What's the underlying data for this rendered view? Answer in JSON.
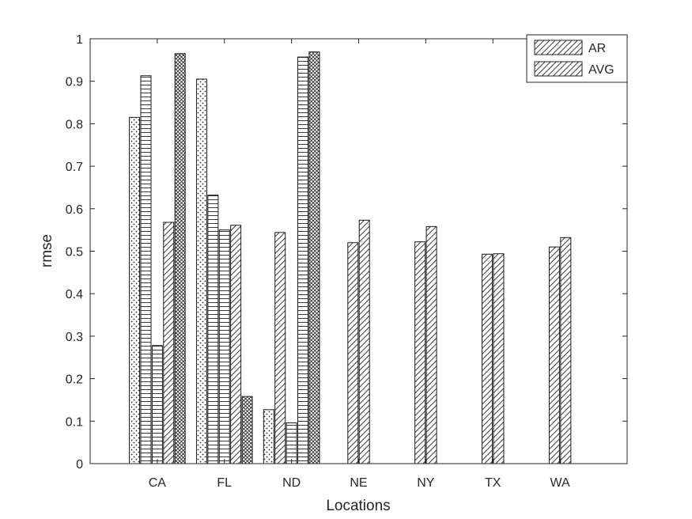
{
  "chart_data": {
    "type": "bar",
    "xlabel": "Locations",
    "ylabel": "rmse",
    "ylim": [
      0,
      1
    ],
    "yticks": [
      "0",
      "0.1",
      "0.2",
      "0.3",
      "0.4",
      "0.5",
      "0.6",
      "0.7",
      "0.8",
      "0.9",
      "1"
    ],
    "categories": [
      "CA",
      "FL",
      "ND",
      "NE",
      "NY",
      "TX",
      "WA"
    ],
    "legend_placement": "top-right",
    "legend": [
      "AR",
      "AVG"
    ],
    "bar_groups": [
      {
        "category": "CA",
        "bars": [
          {
            "value": 0.815,
            "pattern": "dots"
          },
          {
            "value": 0.913,
            "pattern": "hlines"
          },
          {
            "value": 0.278,
            "pattern": "hlines"
          },
          {
            "value": 0.568,
            "pattern": "diag"
          },
          {
            "value": 0.965,
            "pattern": "cross"
          }
        ]
      },
      {
        "category": "FL",
        "bars": [
          {
            "value": 0.905,
            "pattern": "dots"
          },
          {
            "value": 0.632,
            "pattern": "hlines"
          },
          {
            "value": 0.55,
            "pattern": "hlines"
          },
          {
            "value": 0.561,
            "pattern": "diag"
          },
          {
            "value": 0.158,
            "pattern": "cross"
          }
        ]
      },
      {
        "category": "ND",
        "bars": [
          {
            "value": 0.127,
            "pattern": "dots"
          },
          {
            "value": 0.544,
            "pattern": "diag"
          },
          {
            "value": 0.096,
            "pattern": "hlines"
          },
          {
            "value": 0.957,
            "pattern": "hlines"
          },
          {
            "value": 0.969,
            "pattern": "cross"
          }
        ]
      },
      {
        "category": "NE",
        "bars": [
          {
            "value": 0.52,
            "pattern": "diag"
          },
          {
            "value": 0.573,
            "pattern": "diag"
          }
        ]
      },
      {
        "category": "NY",
        "bars": [
          {
            "value": 0.522,
            "pattern": "diag"
          },
          {
            "value": 0.558,
            "pattern": "diag"
          }
        ]
      },
      {
        "category": "TX",
        "bars": [
          {
            "value": 0.493,
            "pattern": "diag"
          },
          {
            "value": 0.494,
            "pattern": "diag"
          }
        ]
      },
      {
        "category": "WA",
        "bars": [
          {
            "value": 0.51,
            "pattern": "diag"
          },
          {
            "value": 0.532,
            "pattern": "diag"
          }
        ]
      }
    ]
  }
}
